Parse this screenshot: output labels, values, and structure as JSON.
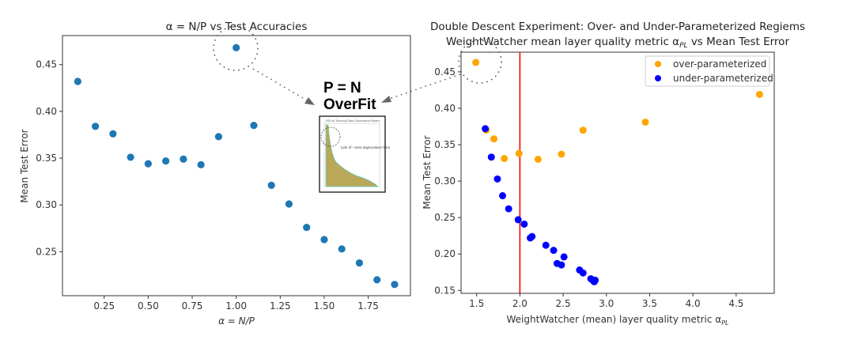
{
  "chart_data": [
    {
      "type": "scatter",
      "title": "α = N/P vs Test Accuracies",
      "xlabel": "α = N/P",
      "ylabel": "Mean Test Error",
      "xlim": [
        0.013,
        1.99
      ],
      "ylim": [
        0.203,
        0.481
      ],
      "xticks": [
        "0.25",
        "0.50",
        "0.75",
        "1.00",
        "1.25",
        "1.50",
        "1.75"
      ],
      "xtick_values": [
        0.25,
        0.5,
        0.75,
        1.0,
        1.25,
        1.5,
        1.75
      ],
      "yticks": [
        "0.25",
        "0.30",
        "0.35",
        "0.40",
        "0.45"
      ],
      "ytick_values": [
        0.25,
        0.3,
        0.35,
        0.4,
        0.45
      ],
      "grid": false,
      "color": "#1f77b4",
      "x": [
        0.1,
        0.2,
        0.3,
        0.4,
        0.5,
        0.6,
        0.7,
        0.8,
        0.9,
        1.0,
        1.1,
        1.2,
        1.3,
        1.4,
        1.5,
        1.6,
        1.7,
        1.8,
        1.9
      ],
      "y": [
        0.432,
        0.384,
        0.376,
        0.351,
        0.344,
        0.347,
        0.349,
        0.343,
        0.373,
        0.468,
        0.385,
        0.321,
        0.301,
        0.276,
        0.263,
        0.253,
        0.238,
        0.22,
        0.215
      ]
    },
    {
      "type": "scatter",
      "title": "Double Descent Experiment: Over- and Under-Parameterized Regiems",
      "subtitle": "WeightWatcher mean layer quality metric α",
      "subtitle_sub": "PL",
      "subtitle_tail": "  vs Mean Test Error",
      "xlabel": "WeightWatcher (mean) layer quality metric α",
      "xlabel_sub": "PL",
      "ylabel": "Mean Test Error",
      "xlim": [
        1.32,
        4.94
      ],
      "ylim": [
        0.146,
        0.477
      ],
      "xticks": [
        "1.5",
        "2.0",
        "2.5",
        "3.0",
        "3.5",
        "4.0",
        "4.5"
      ],
      "xtick_values": [
        1.5,
        2.0,
        2.5,
        3.0,
        3.5,
        4.0,
        4.5
      ],
      "yticks": [
        "0.15",
        "0.20",
        "0.25",
        "0.30",
        "0.35",
        "0.40",
        "0.45"
      ],
      "ytick_values": [
        0.15,
        0.2,
        0.25,
        0.3,
        0.35,
        0.4,
        0.45
      ],
      "grid": false,
      "vline": {
        "x": 2.0,
        "color": "#ff0000"
      },
      "legend_placement": "top-right",
      "series": [
        {
          "name": "over-parameterized",
          "color": "#ffa500",
          "x": [
            1.49,
            1.61,
            1.7,
            1.82,
            1.99,
            2.21,
            2.48,
            2.73,
            3.45,
            4.77
          ],
          "y": [
            0.463,
            0.37,
            0.358,
            0.331,
            0.338,
            0.33,
            0.337,
            0.37,
            0.381,
            0.419
          ]
        },
        {
          "name": "under-parameterized",
          "color": "#0000ff",
          "x": [
            1.6,
            1.67,
            1.74,
            1.8,
            1.87,
            1.98,
            2.05,
            2.12,
            2.14,
            2.3,
            2.39,
            2.51,
            2.43,
            2.48,
            2.69,
            2.73,
            2.82,
            2.85,
            2.86,
            2.87
          ],
          "y": [
            0.372,
            0.333,
            0.303,
            0.28,
            0.262,
            0.247,
            0.241,
            0.222,
            0.224,
            0.212,
            0.205,
            0.196,
            0.187,
            0.185,
            0.178,
            0.174,
            0.166,
            0.163,
            0.162,
            0.164
          ]
        }
      ]
    }
  ],
  "annotation": {
    "line1": "P = N",
    "line2": "OverFit",
    "inset_title": "ESD of Training Data Covariance Matrix",
    "inset_note": "Lots of ~zero eigenvalues here",
    "inset_fill_color": "#b8a858"
  }
}
